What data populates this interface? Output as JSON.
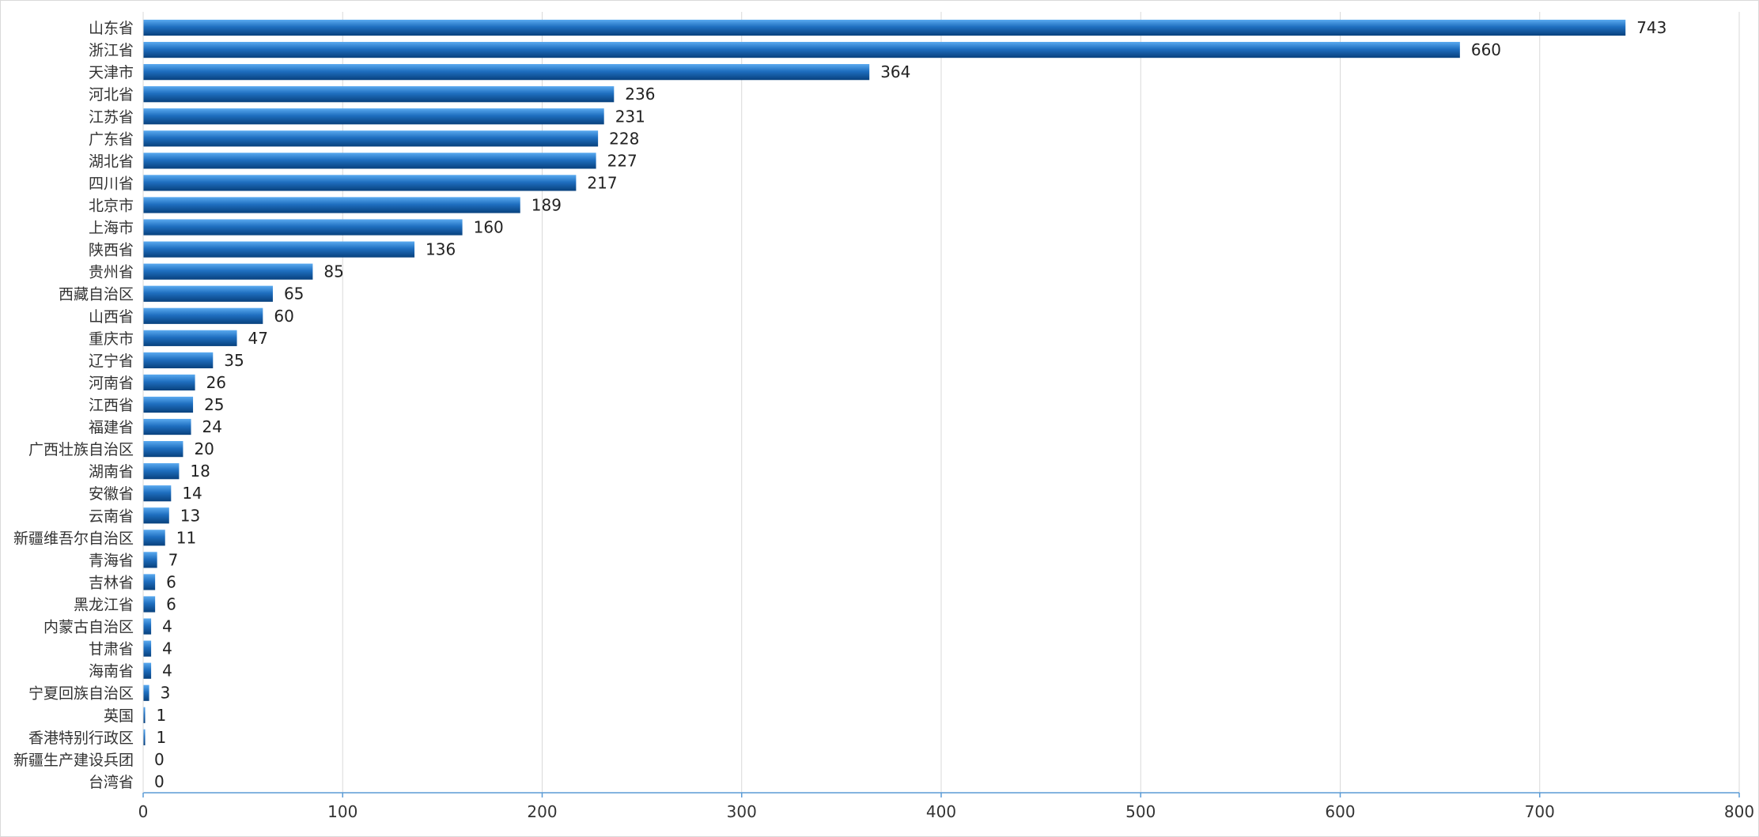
{
  "chart_data": {
    "type": "bar",
    "orientation": "horizontal",
    "title": "",
    "xlabel": "",
    "ylabel": "",
    "xlim": [
      0,
      800
    ],
    "x_ticks": [
      0,
      100,
      200,
      300,
      400,
      500,
      600,
      700,
      800
    ],
    "grid": "vertical",
    "legend": "none",
    "data_labels": true,
    "colors": {
      "bar_light": "#4a9be0",
      "bar_dark": "#0a4a8c",
      "grid": "#d9d9d9",
      "axis": "#5b9bd5"
    },
    "categories": [
      "山东省",
      "浙江省",
      "天津市",
      "河北省",
      "江苏省",
      "广东省",
      "湖北省",
      "四川省",
      "北京市",
      "上海市",
      "陕西省",
      "贵州省",
      "西藏自治区",
      "山西省",
      "重庆市",
      "辽宁省",
      "河南省",
      "江西省",
      "福建省",
      "广西壮族自治区",
      "湖南省",
      "安徽省",
      "云南省",
      "新疆维吾尔自治区",
      "青海省",
      "吉林省",
      "黑龙江省",
      "内蒙古自治区",
      "甘肃省",
      "海南省",
      "宁夏回族自治区",
      "英国",
      "香港特别行政区",
      "新疆生产建设兵团",
      "台湾省"
    ],
    "values": [
      743,
      660,
      364,
      236,
      231,
      228,
      227,
      217,
      189,
      160,
      136,
      85,
      65,
      60,
      47,
      35,
      26,
      25,
      24,
      20,
      18,
      14,
      13,
      11,
      7,
      6,
      6,
      4,
      4,
      4,
      3,
      1,
      1,
      0,
      0
    ]
  }
}
